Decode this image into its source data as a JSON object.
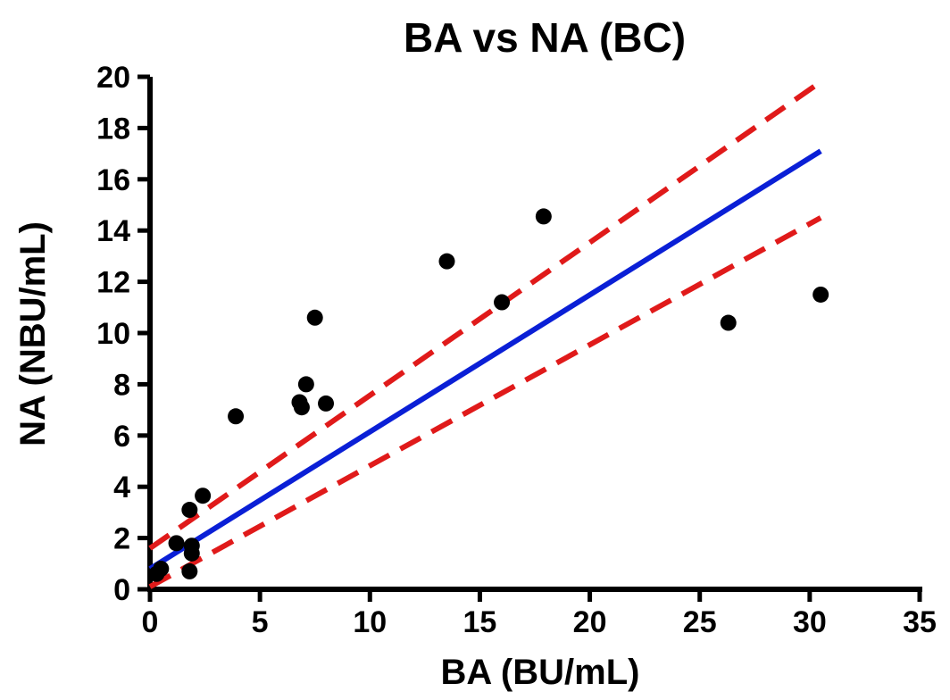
{
  "chart_data": {
    "type": "scatter",
    "title": "BA vs NA (BC)",
    "xlabel": "BA (BU/mL)",
    "ylabel": "NA (NBU/mL)",
    "xlim": [
      0,
      35
    ],
    "ylim": [
      0,
      20
    ],
    "xticks": [
      "0",
      "5",
      "10",
      "15",
      "20",
      "25",
      "30",
      "35"
    ],
    "yticks": [
      "0",
      "2",
      "4",
      "6",
      "8",
      "10",
      "12",
      "14",
      "16",
      "18",
      "20"
    ],
    "grid": false,
    "points": [
      {
        "x": 0.3,
        "y": 0.6
      },
      {
        "x": 0.5,
        "y": 0.8
      },
      {
        "x": 1.2,
        "y": 1.8
      },
      {
        "x": 1.8,
        "y": 3.1
      },
      {
        "x": 1.8,
        "y": 0.7
      },
      {
        "x": 1.9,
        "y": 1.4
      },
      {
        "x": 1.9,
        "y": 1.7
      },
      {
        "x": 2.4,
        "y": 3.65
      },
      {
        "x": 3.9,
        "y": 6.75
      },
      {
        "x": 6.8,
        "y": 7.3
      },
      {
        "x": 6.9,
        "y": 7.1
      },
      {
        "x": 7.1,
        "y": 8.0
      },
      {
        "x": 7.5,
        "y": 10.6
      },
      {
        "x": 8.0,
        "y": 7.25
      },
      {
        "x": 13.5,
        "y": 12.8
      },
      {
        "x": 16.0,
        "y": 11.2
      },
      {
        "x": 17.9,
        "y": 14.55
      },
      {
        "x": 26.3,
        "y": 10.4
      },
      {
        "x": 30.5,
        "y": 11.5
      }
    ],
    "series": [
      {
        "type": "line",
        "role": "fit",
        "x": [
          0,
          30.5
        ],
        "y": [
          0.8,
          17.1
        ]
      },
      {
        "type": "line",
        "role": "upper-confidence",
        "x": [
          0,
          30.5
        ],
        "y": [
          1.6,
          19.8
        ]
      },
      {
        "type": "line",
        "role": "lower-confidence",
        "x": [
          0,
          30.5
        ],
        "y": [
          0.1,
          14.5
        ]
      }
    ],
    "colors": {
      "points": "#000000",
      "fit": "#0a1fd6",
      "confidence": "#e01a1a",
      "axes": "#000000"
    }
  }
}
